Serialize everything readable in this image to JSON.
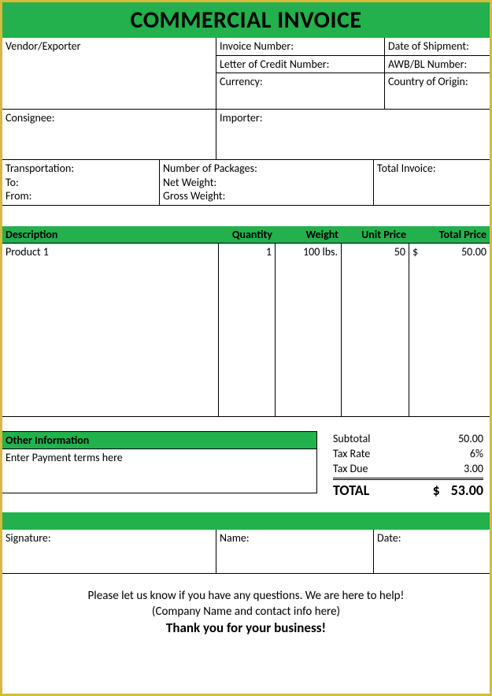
{
  "title": "COMMERCIAL INVOICE",
  "colors": {
    "accent": "#22b14c",
    "border": "#d6b93f",
    "line": "#000000",
    "background": "#ffffff"
  },
  "header": {
    "vendor_label": "Vendor/Exporter",
    "invoice_number_label": "Invoice Number:",
    "date_of_shipment_label": "Date of Shipment:",
    "letter_of_credit_label": "Letter of Credit Number:",
    "awb_bl_label": "AWB/BL Number:",
    "currency_label": "Currency:",
    "country_of_origin_label": "Country of Origin:",
    "consignee_label": "Consignee:",
    "importer_label": "Importer:",
    "transportation_label": "Transportation:",
    "transportation_to_label": "To:",
    "transportation_from_label": "From:",
    "packages_label": "Number of Packages:",
    "net_weight_label": "Net Weight:",
    "gross_weight_label": "Gross Weight:",
    "total_invoice_label": "Total Invoice:"
  },
  "items_header": {
    "description": "Description",
    "quantity": "Quantity",
    "weight": "Weight",
    "unit_price": "Unit Price",
    "total_price": "Total Price"
  },
  "items": [
    {
      "description": "Product 1",
      "quantity": "1",
      "weight": "100 lbs.",
      "unit_price": "50",
      "total_currency": "$",
      "total_price": "50.00"
    }
  ],
  "other": {
    "title": "Other Information",
    "body": "Enter Payment terms here"
  },
  "totals": {
    "subtotal_label": "Subtotal",
    "subtotal_value": "50.00",
    "tax_rate_label": "Tax Rate",
    "tax_rate_value": "6%",
    "tax_due_label": "Tax Due",
    "tax_due_value": "3.00",
    "total_label": "TOTAL",
    "total_currency": "$",
    "total_value": "53.00"
  },
  "signatures": {
    "signature_label": "Signature:",
    "name_label": "Name:",
    "date_label": "Date:"
  },
  "footer": {
    "line1": "Please let us know if you have any questions. We are here to help!",
    "line2": "(Company Name and contact info here)",
    "thanks": "Thank you for your business!"
  }
}
